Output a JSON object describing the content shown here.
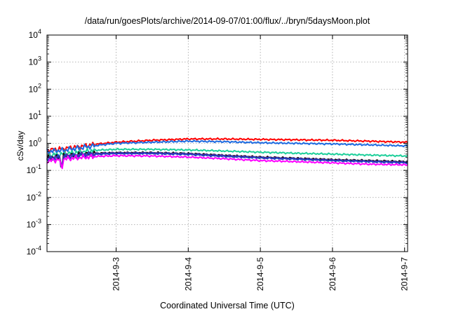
{
  "chart_data": {
    "type": "line",
    "title": "/data/run/goesPlots/archive/2014-09-07/01:00/flux/../bryn/5daysMoon.plot",
    "xlabel": "Coordinated Universal Time (UTC)",
    "ylabel": "cSv/day",
    "yscale": "log",
    "ylim": [
      0.0001,
      10000
    ],
    "xlim": [
      "2014-09-02T01:00",
      "2014-09-07T01:00"
    ],
    "x_ticks": [
      "2014-9-3",
      "2014-9-4",
      "2014-9-5",
      "2014-9-6",
      "2014-9-7"
    ],
    "y_ticks": [
      {
        "value": 0.0001,
        "base": "10",
        "exp": "-4"
      },
      {
        "value": 0.001,
        "base": "10",
        "exp": "-3"
      },
      {
        "value": 0.01,
        "base": "10",
        "exp": "-2"
      },
      {
        "value": 0.1,
        "base": "10",
        "exp": "-1"
      },
      {
        "value": 1,
        "base": "10",
        "exp": "0"
      },
      {
        "value": 10,
        "base": "10",
        "exp": "1"
      },
      {
        "value": 100,
        "base": "10",
        "exp": "2"
      },
      {
        "value": 1000,
        "base": "10",
        "exp": "3"
      },
      {
        "value": 10000,
        "base": "10",
        "exp": "4"
      }
    ],
    "grid": true,
    "x": [
      "2014-09-02T01:00",
      "2014-09-02T06:00",
      "2014-09-02T12:00",
      "2014-09-02T18:00",
      "2014-09-03T00:00",
      "2014-09-03T12:00",
      "2014-09-04T00:00",
      "2014-09-04T12:00",
      "2014-09-05T00:00",
      "2014-09-05T12:00",
      "2014-09-06T00:00",
      "2014-09-06T12:00",
      "2014-09-07T01:00"
    ],
    "series": [
      {
        "color": "#ff0000",
        "values": [
          0.55,
          0.62,
          0.75,
          0.95,
          1.1,
          1.3,
          1.45,
          1.45,
          1.4,
          1.35,
          1.3,
          1.2,
          1.1
        ]
      },
      {
        "color": "#1e6be0",
        "values": [
          0.5,
          0.55,
          0.68,
          0.85,
          1.0,
          1.1,
          1.2,
          1.15,
          1.05,
          1.0,
          0.95,
          0.88,
          0.8
        ]
      },
      {
        "color": "#1ecf9a",
        "values": [
          0.35,
          0.4,
          0.48,
          0.56,
          0.6,
          0.6,
          0.57,
          0.52,
          0.47,
          0.43,
          0.4,
          0.37,
          0.34
        ]
      },
      {
        "color": "#111111",
        "values": [
          0.28,
          0.33,
          0.38,
          0.43,
          0.45,
          0.45,
          0.42,
          0.36,
          0.31,
          0.28,
          0.25,
          0.23,
          0.21
        ]
      },
      {
        "color": "#5a2aa0",
        "values": [
          0.27,
          0.32,
          0.37,
          0.42,
          0.44,
          0.44,
          0.41,
          0.35,
          0.3,
          0.27,
          0.24,
          0.22,
          0.2
        ]
      },
      {
        "color": "#2040c0",
        "values": [
          0.26,
          0.31,
          0.36,
          0.4,
          0.42,
          0.42,
          0.39,
          0.33,
          0.29,
          0.26,
          0.23,
          0.21,
          0.19
        ]
      },
      {
        "color": "#ff00ff",
        "values": [
          0.22,
          0.26,
          0.3,
          0.33,
          0.35,
          0.34,
          0.31,
          0.27,
          0.23,
          0.21,
          0.19,
          0.17,
          0.16
        ]
      }
    ]
  }
}
